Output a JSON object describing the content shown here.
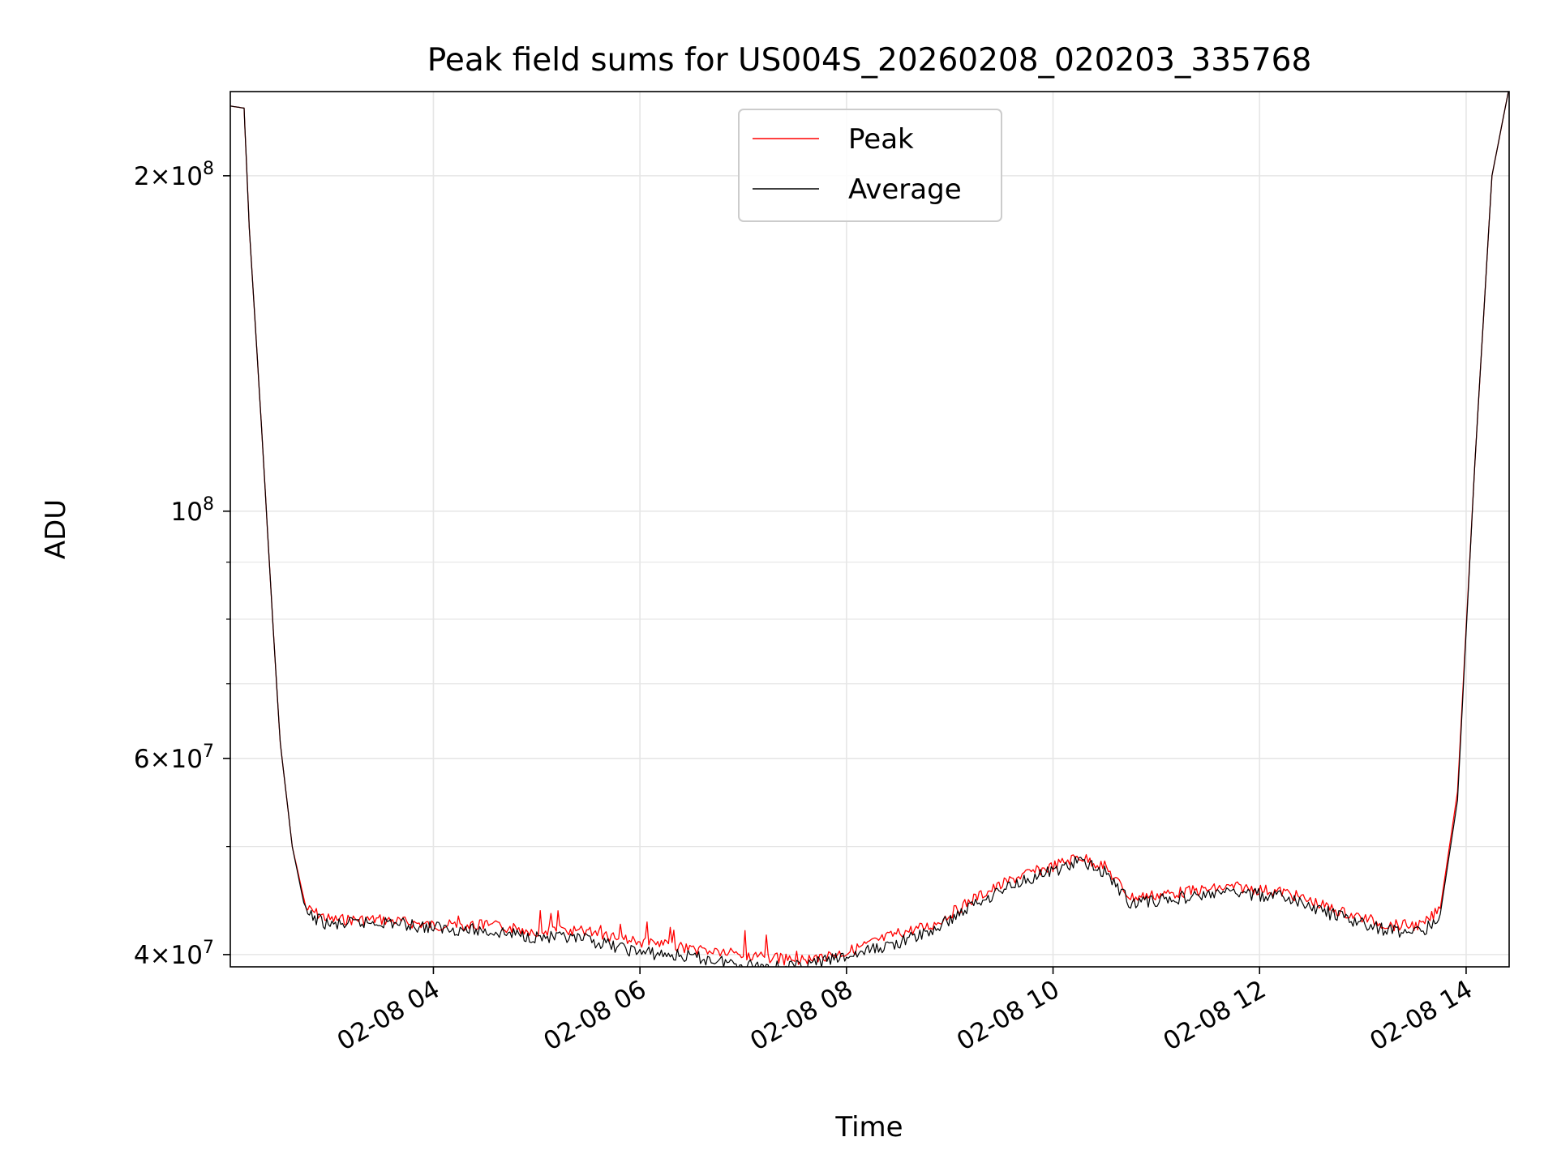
{
  "chart_data": {
    "type": "line",
    "title": "Peak field sums for US004S_20260208_020203_335768",
    "xlabel": "Time",
    "ylabel": "ADU",
    "y_scale": "log",
    "grid": true,
    "legend_position": "top-center",
    "xlim": [
      "2026-02-08 02:02",
      "2026-02-08 14:25"
    ],
    "ylim": [
      39000000,
      238000000
    ],
    "x_ticks": [
      {
        "value": "2026-02-08 04:00",
        "label": "02-08 04"
      },
      {
        "value": "2026-02-08 06:00",
        "label": "02-08 06"
      },
      {
        "value": "2026-02-08 08:00",
        "label": "02-08 08"
      },
      {
        "value": "2026-02-08 10:00",
        "label": "02-08 10"
      },
      {
        "value": "2026-02-08 12:00",
        "label": "02-08 12"
      },
      {
        "value": "2026-02-08 14:00",
        "label": "02-08 14"
      }
    ],
    "y_ticks": [
      {
        "value": 40000000,
        "base": "4",
        "exp": "7"
      },
      {
        "value": 60000000,
        "base": "6",
        "exp": "7"
      },
      {
        "value": 100000000,
        "base": "",
        "exp": "8"
      },
      {
        "value": 200000000,
        "base": "2",
        "exp": "8"
      }
    ],
    "y_minor_ticks": [
      50000000,
      70000000,
      80000000,
      90000000
    ],
    "series": [
      {
        "name": "Peak",
        "color": "#ff0000",
        "x": [
          "2026-02-08 02:02",
          "2026-02-08 02:10",
          "2026-02-08 02:13",
          "2026-02-08 02:20",
          "2026-02-08 02:27",
          "2026-02-08 02:31",
          "2026-02-08 02:38",
          "2026-02-08 02:46",
          "2026-02-08 03:00",
          "2026-02-08 03:30",
          "2026-02-08 04:00",
          "2026-02-08 04:30",
          "2026-02-08 05:00",
          "2026-02-08 05:30",
          "2026-02-08 06:00",
          "2026-02-08 06:30",
          "2026-02-08 07:00",
          "2026-02-08 07:30",
          "2026-02-08 08:00",
          "2026-02-08 08:30",
          "2026-02-08 08:50",
          "2026-02-08 09:15",
          "2026-02-08 09:40",
          "2026-02-08 10:00",
          "2026-02-08 10:15",
          "2026-02-08 10:30",
          "2026-02-08 10:45",
          "2026-02-08 11:15",
          "2026-02-08 11:45",
          "2026-02-08 12:15",
          "2026-02-08 12:45",
          "2026-02-08 13:15",
          "2026-02-08 13:35",
          "2026-02-08 13:45",
          "2026-02-08 13:55",
          "2026-02-08 14:05",
          "2026-02-08 14:15",
          "2026-02-08 14:25"
        ],
        "values": [
          231000000,
          230000000,
          180000000,
          120000000,
          78000000,
          62000000,
          50000000,
          44000000,
          43000000,
          43000000,
          42500000,
          42500000,
          42000000,
          42000000,
          41000000,
          40500000,
          40000000,
          39500000,
          40200000,
          41800000,
          42500000,
          45000000,
          47000000,
          48000000,
          49000000,
          48000000,
          45000000,
          45500000,
          46000000,
          45500000,
          43800000,
          42500000,
          42500000,
          44000000,
          56000000,
          110000000,
          200000000,
          240000000
        ]
      },
      {
        "name": "Average",
        "color": "#000000",
        "x": [
          "2026-02-08 02:02",
          "2026-02-08 02:10",
          "2026-02-08 02:13",
          "2026-02-08 02:20",
          "2026-02-08 02:27",
          "2026-02-08 02:31",
          "2026-02-08 02:38",
          "2026-02-08 02:46",
          "2026-02-08 03:00",
          "2026-02-08 03:30",
          "2026-02-08 04:00",
          "2026-02-08 04:30",
          "2026-02-08 05:00",
          "2026-02-08 05:30",
          "2026-02-08 06:00",
          "2026-02-08 06:30",
          "2026-02-08 07:00",
          "2026-02-08 07:30",
          "2026-02-08 08:00",
          "2026-02-08 08:30",
          "2026-02-08 08:50",
          "2026-02-08 09:15",
          "2026-02-08 09:40",
          "2026-02-08 10:00",
          "2026-02-08 10:15",
          "2026-02-08 10:30",
          "2026-02-08 10:45",
          "2026-02-08 11:15",
          "2026-02-08 11:45",
          "2026-02-08 12:15",
          "2026-02-08 12:45",
          "2026-02-08 13:15",
          "2026-02-08 13:35",
          "2026-02-08 13:45",
          "2026-02-08 13:55",
          "2026-02-08 14:05",
          "2026-02-08 14:15",
          "2026-02-08 14:25"
        ],
        "values": [
          231000000,
          230000000,
          180000000,
          120000000,
          78000000,
          62000000,
          50000000,
          43500000,
          42500000,
          42800000,
          42300000,
          42000000,
          41500000,
          41200000,
          40200000,
          39800000,
          39200000,
          39000000,
          39800000,
          41000000,
          42000000,
          44500000,
          46500000,
          47500000,
          48500000,
          47500000,
          44500000,
          45000000,
          45500000,
          45000000,
          43300000,
          42000000,
          42000000,
          43500000,
          55000000,
          110000000,
          200000000,
          240000000
        ]
      }
    ]
  }
}
